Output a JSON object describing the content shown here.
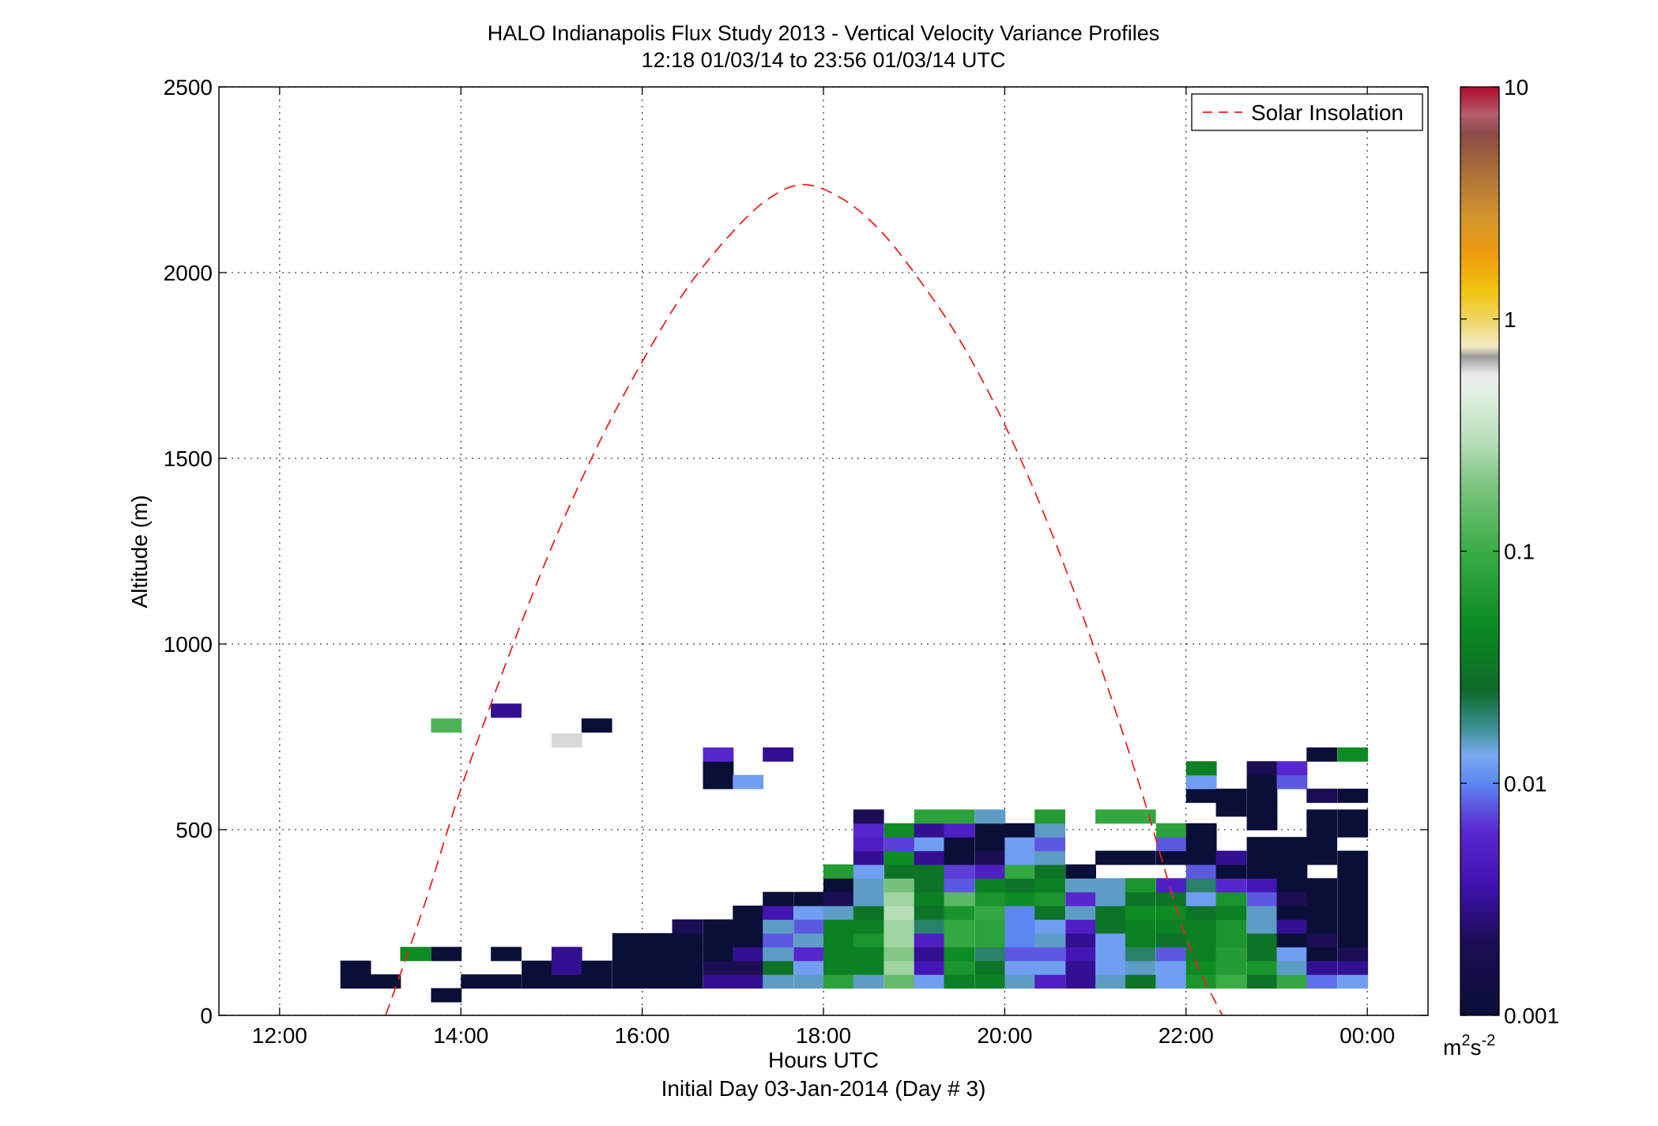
{
  "chart_data": {
    "type": "heatmap",
    "title": "HALO Indianapolis Flux Study 2013 - Vertical Velocity Variance Profiles",
    "subtitle": "12:18 01/03/14 to 23:56 01/03/14  UTC",
    "xlabel": "Hours UTC",
    "xlabel2": "Initial Day 03-Jan-2014 (Day # 3)",
    "ylabel": "Altitude (m)",
    "xlim": [
      11.33,
      24.67
    ],
    "ylim": [
      0,
      2500
    ],
    "x_ticks": [
      12,
      14,
      16,
      18,
      20,
      22,
      24
    ],
    "x_tick_labels": [
      "12:00",
      "14:00",
      "16:00",
      "18:00",
      "20:00",
      "22:00",
      "00:00"
    ],
    "y_ticks": [
      0,
      500,
      1000,
      1500,
      2000,
      2500
    ],
    "y_tick_labels": [
      "0",
      "500",
      "1000",
      "1500",
      "2000",
      "2500"
    ],
    "grid": true,
    "legend": {
      "position": "top-right",
      "entries": [
        "Solar Insolation"
      ]
    },
    "colorbar": {
      "scale": "log",
      "range": [
        0.001,
        10
      ],
      "tick_values": [
        0.001,
        0.01,
        0.1,
        1,
        10
      ],
      "tick_labels": [
        "0.001",
        "0.01",
        "0.1",
        "1",
        "10"
      ],
      "unit_base": "m",
      "unit_exp1": "2",
      "unit_mid": "s",
      "unit_exp2": "-2"
    },
    "colormap": [
      [
        0.0,
        "#0a0f38"
      ],
      [
        0.08,
        "#1c0d55"
      ],
      [
        0.14,
        "#3f12b0"
      ],
      [
        0.2,
        "#5a28d0"
      ],
      [
        0.25,
        "#5d87f0"
      ],
      [
        0.28,
        "#7aaaf2"
      ],
      [
        0.31,
        "#3b8f92"
      ],
      [
        0.35,
        "#0e6b2a"
      ],
      [
        0.42,
        "#0a8a20"
      ],
      [
        0.5,
        "#3aad45"
      ],
      [
        0.57,
        "#7cc47f"
      ],
      [
        0.62,
        "#b9dfbb"
      ],
      [
        0.67,
        "#e2f0e4"
      ],
      [
        0.69,
        "#ececec"
      ],
      [
        0.71,
        "#9a9a9a"
      ],
      [
        0.72,
        "#f3eac8"
      ],
      [
        0.75,
        "#efd562"
      ],
      [
        0.78,
        "#f1c40f"
      ],
      [
        0.82,
        "#ef9a0e"
      ],
      [
        0.86,
        "#d4962c"
      ],
      [
        0.92,
        "#a0663a"
      ],
      [
        0.95,
        "#8a4a4a"
      ],
      [
        0.97,
        "#b45e6e"
      ],
      [
        1.0,
        "#b00a2a"
      ]
    ],
    "solar_insolation": {
      "color": "#e8231f",
      "x": [
        13.17,
        13.6,
        14.0,
        14.5,
        15.0,
        15.5,
        16.0,
        16.5,
        17.0,
        17.4,
        17.78,
        18.2,
        18.6,
        19.0,
        19.5,
        20.0,
        20.5,
        21.0,
        21.5,
        22.0,
        22.4
      ],
      "y": [
        0,
        300,
        610,
        950,
        1260,
        1530,
        1760,
        1960,
        2110,
        2200,
        2237,
        2200,
        2120,
        2000,
        1820,
        1590,
        1310,
        980,
        610,
        210,
        0
      ]
    },
    "cell_width_h": 0.333,
    "cell_height_m": 37,
    "cells": [
      [
        12.67,
        92,
        0.001
      ],
      [
        12.67,
        129,
        0.001
      ],
      [
        13.0,
        92,
        0.001
      ],
      [
        13.33,
        166,
        0.05
      ],
      [
        13.67,
        55,
        0.001
      ],
      [
        13.67,
        166,
        0.001
      ],
      [
        13.67,
        781,
        0.12
      ],
      [
        14.0,
        92,
        0.001
      ],
      [
        14.33,
        92,
        0.001
      ],
      [
        14.33,
        166,
        0.001
      ],
      [
        14.33,
        821,
        0.003
      ],
      [
        14.67,
        92,
        0.001
      ],
      [
        14.67,
        129,
        0.001
      ],
      [
        15.0,
        92,
        0.001
      ],
      [
        15.0,
        129,
        0.003
      ],
      [
        15.0,
        166,
        0.003
      ],
      [
        15.0,
        741,
        0.6
      ],
      [
        15.33,
        92,
        0.001
      ],
      [
        15.33,
        129,
        0.001
      ],
      [
        15.33,
        781,
        0.001
      ],
      [
        15.67,
        92,
        0.001
      ],
      [
        15.67,
        129,
        0.001
      ],
      [
        15.67,
        166,
        0.001
      ],
      [
        15.67,
        203,
        0.001
      ],
      [
        16.0,
        92,
        0.001
      ],
      [
        16.0,
        129,
        0.001
      ],
      [
        16.0,
        166,
        0.001
      ],
      [
        16.0,
        203,
        0.001
      ],
      [
        16.33,
        92,
        0.001
      ],
      [
        16.33,
        129,
        0.001
      ],
      [
        16.33,
        166,
        0.001
      ],
      [
        16.33,
        203,
        0.001
      ],
      [
        16.33,
        240,
        0.002
      ],
      [
        16.67,
        92,
        0.003
      ],
      [
        16.67,
        129,
        0.002
      ],
      [
        16.67,
        166,
        0.001
      ],
      [
        16.67,
        203,
        0.001
      ],
      [
        16.67,
        240,
        0.001
      ],
      [
        16.67,
        629,
        0.001
      ],
      [
        16.67,
        666,
        0.001
      ],
      [
        16.67,
        703,
        0.006
      ],
      [
        17.0,
        92,
        0.003
      ],
      [
        17.0,
        129,
        0.002
      ],
      [
        17.0,
        166,
        0.003
      ],
      [
        17.0,
        203,
        0.001
      ],
      [
        17.0,
        240,
        0.001
      ],
      [
        17.0,
        277,
        0.001
      ],
      [
        17.0,
        629,
        0.012
      ],
      [
        17.33,
        92,
        0.015
      ],
      [
        17.33,
        129,
        0.03
      ],
      [
        17.33,
        166,
        0.015
      ],
      [
        17.33,
        203,
        0.008
      ],
      [
        17.33,
        240,
        0.015
      ],
      [
        17.33,
        277,
        0.004
      ],
      [
        17.33,
        314,
        0.001
      ],
      [
        17.33,
        703,
        0.003
      ],
      [
        17.67,
        92,
        0.015
      ],
      [
        17.67,
        129,
        0.012
      ],
      [
        17.67,
        166,
        0.006
      ],
      [
        17.67,
        203,
        0.015
      ],
      [
        17.67,
        240,
        0.008
      ],
      [
        17.67,
        277,
        0.012
      ],
      [
        17.67,
        314,
        0.001
      ],
      [
        18.0,
        92,
        0.08
      ],
      [
        18.0,
        129,
        0.04
      ],
      [
        18.0,
        166,
        0.04
      ],
      [
        18.0,
        203,
        0.04
      ],
      [
        18.0,
        240,
        0.04
      ],
      [
        18.0,
        277,
        0.015
      ],
      [
        18.0,
        314,
        0.002
      ],
      [
        18.0,
        351,
        0.001
      ],
      [
        18.0,
        388,
        0.07
      ],
      [
        18.33,
        92,
        0.015
      ],
      [
        18.33,
        129,
        0.04
      ],
      [
        18.33,
        166,
        0.04
      ],
      [
        18.33,
        203,
        0.06
      ],
      [
        18.33,
        240,
        0.04
      ],
      [
        18.33,
        277,
        0.03
      ],
      [
        18.33,
        314,
        0.015
      ],
      [
        18.33,
        351,
        0.015
      ],
      [
        18.33,
        388,
        0.012
      ],
      [
        18.33,
        425,
        0.003
      ],
      [
        18.33,
        462,
        0.005
      ],
      [
        18.33,
        499,
        0.006
      ],
      [
        18.33,
        536,
        0.002
      ],
      [
        18.67,
        92,
        0.15
      ],
      [
        18.67,
        129,
        0.25
      ],
      [
        18.67,
        166,
        0.2
      ],
      [
        18.67,
        203,
        0.25
      ],
      [
        18.67,
        240,
        0.25
      ],
      [
        18.67,
        277,
        0.3
      ],
      [
        18.67,
        314,
        0.25
      ],
      [
        18.67,
        351,
        0.18
      ],
      [
        18.67,
        388,
        0.03
      ],
      [
        18.67,
        425,
        0.05
      ],
      [
        18.67,
        462,
        0.007
      ],
      [
        18.67,
        499,
        0.05
      ],
      [
        19.0,
        92,
        0.012
      ],
      [
        19.0,
        129,
        0.004
      ],
      [
        19.0,
        166,
        0.003
      ],
      [
        19.0,
        203,
        0.005
      ],
      [
        19.0,
        240,
        0.02
      ],
      [
        19.0,
        277,
        0.03
      ],
      [
        19.0,
        314,
        0.04
      ],
      [
        19.0,
        351,
        0.03
      ],
      [
        19.0,
        388,
        0.03
      ],
      [
        19.0,
        425,
        0.003
      ],
      [
        19.0,
        462,
        0.012
      ],
      [
        19.0,
        499,
        0.003
      ],
      [
        19.0,
        536,
        0.08
      ],
      [
        19.33,
        92,
        0.04
      ],
      [
        19.33,
        129,
        0.06
      ],
      [
        19.33,
        166,
        0.05
      ],
      [
        19.33,
        203,
        0.09
      ],
      [
        19.33,
        240,
        0.09
      ],
      [
        19.33,
        277,
        0.06
      ],
      [
        19.33,
        314,
        0.14
      ],
      [
        19.33,
        351,
        0.008
      ],
      [
        19.33,
        388,
        0.007
      ],
      [
        19.33,
        425,
        0.001
      ],
      [
        19.33,
        462,
        0.001
      ],
      [
        19.33,
        499,
        0.005
      ],
      [
        19.33,
        536,
        0.08
      ],
      [
        19.67,
        92,
        0.04
      ],
      [
        19.67,
        129,
        0.03
      ],
      [
        19.67,
        166,
        0.02
      ],
      [
        19.67,
        203,
        0.08
      ],
      [
        19.67,
        240,
        0.08
      ],
      [
        19.67,
        277,
        0.09
      ],
      [
        19.67,
        314,
        0.06
      ],
      [
        19.67,
        351,
        0.04
      ],
      [
        19.67,
        388,
        0.005
      ],
      [
        19.67,
        425,
        0.002
      ],
      [
        19.67,
        462,
        0.001
      ],
      [
        19.67,
        499,
        0.001
      ],
      [
        19.67,
        536,
        0.015
      ],
      [
        20.0,
        92,
        0.015
      ],
      [
        20.0,
        129,
        0.012
      ],
      [
        20.0,
        166,
        0.008
      ],
      [
        20.0,
        203,
        0.01
      ],
      [
        20.0,
        240,
        0.01
      ],
      [
        20.0,
        277,
        0.01
      ],
      [
        20.0,
        314,
        0.05
      ],
      [
        20.0,
        351,
        0.03
      ],
      [
        20.0,
        388,
        0.09
      ],
      [
        20.0,
        425,
        0.012
      ],
      [
        20.0,
        462,
        0.012
      ],
      [
        20.0,
        499,
        0.001
      ],
      [
        20.33,
        92,
        0.005
      ],
      [
        20.33,
        129,
        0.012
      ],
      [
        20.33,
        166,
        0.008
      ],
      [
        20.33,
        203,
        0.015
      ],
      [
        20.33,
        240,
        0.012
      ],
      [
        20.33,
        277,
        0.03
      ],
      [
        20.33,
        314,
        0.06
      ],
      [
        20.33,
        351,
        0.04
      ],
      [
        20.33,
        388,
        0.03
      ],
      [
        20.33,
        425,
        0.015
      ],
      [
        20.33,
        462,
        0.008
      ],
      [
        20.33,
        499,
        0.015
      ],
      [
        20.33,
        536,
        0.07
      ],
      [
        20.67,
        92,
        0.003
      ],
      [
        20.67,
        129,
        0.003
      ],
      [
        20.67,
        166,
        0.004
      ],
      [
        20.67,
        203,
        0.003
      ],
      [
        20.67,
        240,
        0.005
      ],
      [
        20.67,
        277,
        0.015
      ],
      [
        20.67,
        314,
        0.006
      ],
      [
        20.67,
        351,
        0.015
      ],
      [
        20.67,
        388,
        0.001
      ],
      [
        21.0,
        92,
        0.015
      ],
      [
        21.0,
        129,
        0.012
      ],
      [
        21.0,
        166,
        0.012
      ],
      [
        21.0,
        203,
        0.012
      ],
      [
        21.0,
        240,
        0.03
      ],
      [
        21.0,
        277,
        0.03
      ],
      [
        21.0,
        314,
        0.015
      ],
      [
        21.0,
        351,
        0.015
      ],
      [
        21.0,
        425,
        0.001
      ],
      [
        21.0,
        536,
        0.09
      ],
      [
        21.33,
        92,
        0.03
      ],
      [
        21.33,
        129,
        0.015
      ],
      [
        21.33,
        166,
        0.02
      ],
      [
        21.33,
        203,
        0.04
      ],
      [
        21.33,
        240,
        0.04
      ],
      [
        21.33,
        277,
        0.05
      ],
      [
        21.33,
        314,
        0.03
      ],
      [
        21.33,
        351,
        0.06
      ],
      [
        21.33,
        425,
        0.001
      ],
      [
        21.33,
        536,
        0.09
      ],
      [
        21.67,
        92,
        0.012
      ],
      [
        21.67,
        129,
        0.012
      ],
      [
        21.67,
        166,
        0.008
      ],
      [
        21.67,
        203,
        0.03
      ],
      [
        21.67,
        240,
        0.04
      ],
      [
        21.67,
        277,
        0.05
      ],
      [
        21.67,
        314,
        0.03
      ],
      [
        21.67,
        351,
        0.005
      ],
      [
        21.67,
        425,
        0.001
      ],
      [
        21.67,
        462,
        0.008
      ],
      [
        21.67,
        499,
        0.08
      ],
      [
        22.0,
        92,
        0.06
      ],
      [
        22.0,
        129,
        0.05
      ],
      [
        22.0,
        166,
        0.04
      ],
      [
        22.0,
        203,
        0.04
      ],
      [
        22.0,
        240,
        0.04
      ],
      [
        22.0,
        277,
        0.03
      ],
      [
        22.0,
        314,
        0.012
      ],
      [
        22.0,
        351,
        0.02
      ],
      [
        22.0,
        388,
        0.008
      ],
      [
        22.0,
        425,
        0.001
      ],
      [
        22.0,
        462,
        0.001
      ],
      [
        22.0,
        499,
        0.001
      ],
      [
        22.0,
        592,
        0.001
      ],
      [
        22.0,
        629,
        0.012
      ],
      [
        22.0,
        666,
        0.04
      ],
      [
        22.33,
        92,
        0.1
      ],
      [
        22.33,
        129,
        0.07
      ],
      [
        22.33,
        166,
        0.07
      ],
      [
        22.33,
        203,
        0.06
      ],
      [
        22.33,
        240,
        0.06
      ],
      [
        22.33,
        277,
        0.04
      ],
      [
        22.33,
        314,
        0.06
      ],
      [
        22.33,
        351,
        0.006
      ],
      [
        22.33,
        388,
        0.001
      ],
      [
        22.33,
        425,
        0.003
      ],
      [
        22.33,
        555,
        0.001
      ],
      [
        22.33,
        592,
        0.001
      ],
      [
        22.67,
        92,
        0.03
      ],
      [
        22.67,
        129,
        0.06
      ],
      [
        22.67,
        166,
        0.03
      ],
      [
        22.67,
        203,
        0.03
      ],
      [
        22.67,
        240,
        0.015
      ],
      [
        22.67,
        277,
        0.015
      ],
      [
        22.67,
        314,
        0.008
      ],
      [
        22.67,
        351,
        0.004
      ],
      [
        22.67,
        388,
        0.001
      ],
      [
        22.67,
        425,
        0.001
      ],
      [
        22.67,
        462,
        0.001
      ],
      [
        22.67,
        518,
        0.001
      ],
      [
        22.67,
        555,
        0.001
      ],
      [
        22.67,
        592,
        0.001
      ],
      [
        22.67,
        629,
        0.001
      ],
      [
        22.67,
        666,
        0.002
      ],
      [
        23.0,
        92,
        0.09
      ],
      [
        23.0,
        129,
        0.015
      ],
      [
        23.0,
        166,
        0.012
      ],
      [
        23.0,
        203,
        0.001
      ],
      [
        23.0,
        240,
        0.003
      ],
      [
        23.0,
        277,
        0.001
      ],
      [
        23.0,
        314,
        0.002
      ],
      [
        23.0,
        351,
        0.001
      ],
      [
        23.0,
        388,
        0.001
      ],
      [
        23.0,
        425,
        0.001
      ],
      [
        23.0,
        462,
        0.001
      ],
      [
        23.0,
        629,
        0.008
      ],
      [
        23.0,
        666,
        0.006
      ],
      [
        23.33,
        92,
        0.009
      ],
      [
        23.33,
        129,
        0.003
      ],
      [
        23.33,
        166,
        0.001
      ],
      [
        23.33,
        203,
        0.002
      ],
      [
        23.33,
        240,
        0.001
      ],
      [
        23.33,
        277,
        0.001
      ],
      [
        23.33,
        314,
        0.001
      ],
      [
        23.33,
        351,
        0.001
      ],
      [
        23.33,
        425,
        0.001
      ],
      [
        23.33,
        462,
        0.001
      ],
      [
        23.33,
        499,
        0.001
      ],
      [
        23.33,
        536,
        0.001
      ],
      [
        23.33,
        592,
        0.002
      ],
      [
        23.33,
        703,
        0.001
      ],
      [
        23.67,
        92,
        0.012
      ],
      [
        23.67,
        129,
        0.003
      ],
      [
        23.67,
        166,
        0.002
      ],
      [
        23.67,
        203,
        0.001
      ],
      [
        23.67,
        240,
        0.001
      ],
      [
        23.67,
        277,
        0.001
      ],
      [
        23.67,
        314,
        0.001
      ],
      [
        23.67,
        351,
        0.001
      ],
      [
        23.67,
        388,
        0.001
      ],
      [
        23.67,
        425,
        0.001
      ],
      [
        23.67,
        499,
        0.001
      ],
      [
        23.67,
        536,
        0.001
      ],
      [
        23.67,
        592,
        0.001
      ],
      [
        23.67,
        703,
        0.05
      ]
    ]
  }
}
